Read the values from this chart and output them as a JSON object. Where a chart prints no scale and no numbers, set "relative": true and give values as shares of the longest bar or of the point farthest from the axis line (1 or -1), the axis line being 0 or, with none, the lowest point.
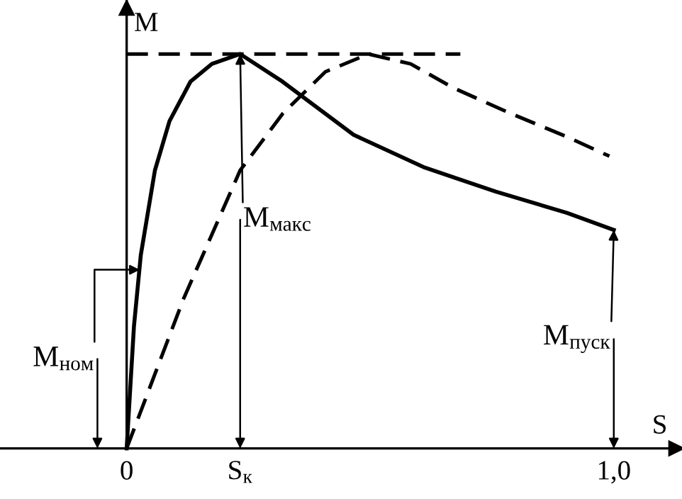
{
  "chart_data": {
    "type": "line",
    "relative": true,
    "xlabel": "S",
    "ylabel": "M",
    "xlim": [
      -0.26,
      1.14
    ],
    "xticks": [
      0,
      {
        "value": 0.233,
        "label": "S$_{к}$"
      },
      {
        "value": 1,
        "label": "1,0"
      }
    ],
    "tick_labels": "x",
    "legend": false,
    "grid": false,
    "marker": "none",
    "series": [
      {
        "color": "#000000",
        "line_style": "solid",
        "x": [
          0,
          0.015,
          0.029,
          0.058,
          0.088,
          0.131,
          0.175,
          0.233,
          0.32,
          0.466,
          0.612,
          0.758,
          0.904,
          1.0
        ],
        "values": [
          0,
          0.31,
          0.49,
          0.705,
          0.83,
          0.93,
          0.975,
          1.0,
          0.93,
          0.795,
          0.712,
          0.651,
          0.597,
          0.554
        ]
      },
      {
        "color": "#000000",
        "line_style": "dashed",
        "x": [
          0,
          0.117,
          0.233,
          0.321,
          0.408,
          0.496,
          0.583,
          0.671,
          0.787,
          0.904,
          0.991
        ],
        "values": [
          0,
          0.38,
          0.705,
          0.85,
          0.955,
          1.0,
          0.975,
          0.914,
          0.85,
          0.79,
          0.741
        ]
      },
      {
        "color": "#000000",
        "line_style": "dashed",
        "x": [
          0,
          0.685
        ],
        "values": [
          1.0,
          1.0
        ]
      }
    ],
    "annotations": [
      {
        "text": "M$_{ном}$",
        "x": 0.027,
        "y": 0.453
      },
      {
        "text": "M$_{макс}$",
        "x": 0.233,
        "y": 1.0
      },
      {
        "text": "M$_{пуск}$",
        "x": 1.0,
        "y": 0.554
      }
    ]
  }
}
